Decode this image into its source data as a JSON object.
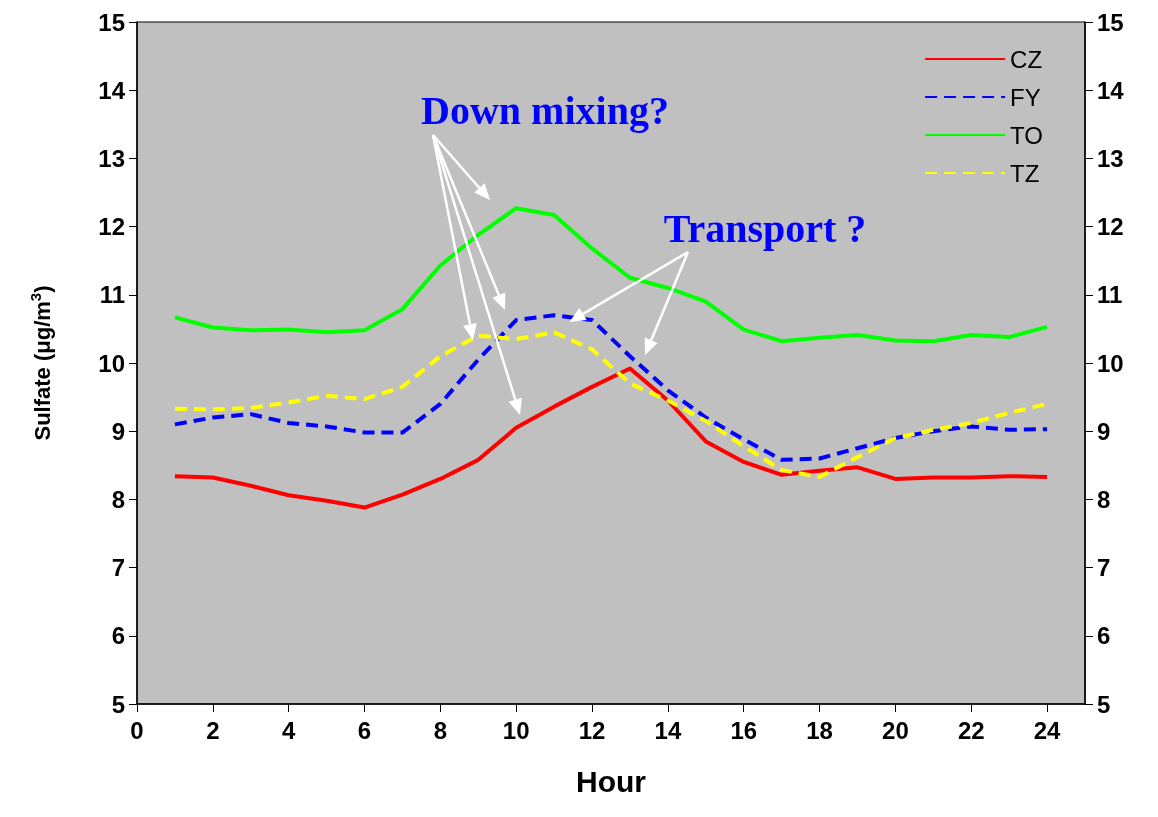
{
  "chart_data": {
    "type": "line",
    "xlabel": "Hour",
    "ylabel": "Sulfate (μg/m$^{3}$)",
    "x": [
      1,
      2,
      3,
      4,
      5,
      6,
      7,
      8,
      9,
      10,
      11,
      12,
      13,
      14,
      15,
      16,
      17,
      18,
      19,
      20,
      21,
      22,
      23,
      24
    ],
    "xlim": [
      0,
      25
    ],
    "xticks": [
      0,
      2,
      4,
      6,
      8,
      10,
      12,
      14,
      16,
      18,
      20,
      22,
      24
    ],
    "ylim": [
      5,
      15
    ],
    "yticks": [
      5,
      6,
      7,
      8,
      9,
      10,
      11,
      12,
      13,
      14,
      15
    ],
    "y2lim": [
      5,
      15
    ],
    "y2ticks": [
      5,
      6,
      7,
      8,
      9,
      10,
      11,
      12,
      13,
      14,
      15
    ],
    "legend": "top right",
    "marker": "none",
    "grid": false,
    "annotations": [
      "Down mixing?",
      {
        "text": "Transport ?",
        "x": 11.4,
        "y": 10.6
      }
    ],
    "series": [
      {
        "name": "CZ",
        "color": "#ff0000",
        "line_style": "solid",
        "values": [
          8.34,
          8.32,
          8.2,
          8.06,
          7.98,
          7.88,
          8.07,
          8.3,
          8.58,
          9.05,
          9.36,
          9.65,
          9.92,
          9.45,
          8.85,
          8.55,
          8.36,
          8.42,
          8.47,
          8.3,
          8.32,
          8.32,
          8.34,
          8.33
        ]
      },
      {
        "name": "FY",
        "color": "#0000ff",
        "line_style": "dashed",
        "values": [
          9.1,
          9.2,
          9.25,
          9.12,
          9.07,
          8.98,
          8.98,
          9.4,
          10.05,
          10.63,
          10.7,
          10.63,
          10.1,
          9.6,
          9.2,
          8.88,
          8.58,
          8.6,
          8.75,
          8.9,
          9.0,
          9.07,
          9.02,
          9.03
        ]
      },
      {
        "name": "TO",
        "color": "#00ff00",
        "line_style": "solid",
        "values": [
          10.67,
          10.52,
          10.48,
          10.49,
          10.45,
          10.48,
          10.79,
          11.43,
          11.88,
          12.27,
          12.17,
          11.68,
          11.25,
          11.1,
          10.9,
          10.49,
          10.32,
          10.37,
          10.41,
          10.33,
          10.32,
          10.41,
          10.38,
          10.53
        ]
      },
      {
        "name": "TZ",
        "color": "#ffff00",
        "line_style": "dashed",
        "values": [
          9.33,
          9.32,
          9.34,
          9.42,
          9.52,
          9.47,
          9.65,
          10.1,
          10.4,
          10.35,
          10.45,
          10.2,
          9.7,
          9.45,
          9.15,
          8.78,
          8.43,
          8.33,
          8.62,
          8.9,
          9.02,
          9.12,
          9.27,
          9.4
        ]
      }
    ]
  }
}
